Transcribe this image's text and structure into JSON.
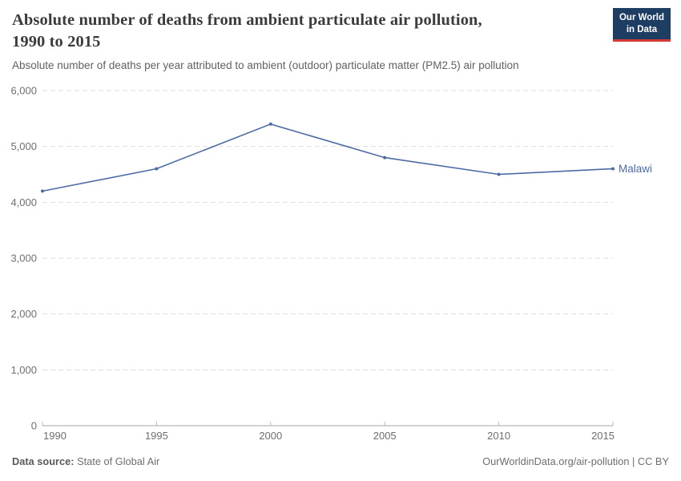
{
  "header": {
    "title_line1": "Absolute number of deaths from ambient particulate air pollution,",
    "title_line2": "1990 to 2015",
    "subtitle": "Absolute number of deaths per year attributed to ambient (outdoor) particulate matter (PM2.5) air pollution",
    "logo": {
      "line1": "Our World",
      "line2": "in Data",
      "bg_color": "#1d3d63",
      "accent_color": "#d73a33"
    }
  },
  "chart_data": {
    "type": "line",
    "title": "Absolute number of deaths from ambient particulate air pollution, 1990 to 2015",
    "x": [
      1990,
      1995,
      2000,
      2005,
      2010,
      2015
    ],
    "xtick_labels": [
      "1990",
      "1995",
      "2000",
      "2005",
      "2010",
      "2015"
    ],
    "series": [
      {
        "name": "Malawi",
        "values": [
          4200,
          4600,
          5400,
          4800,
          4500,
          4600
        ],
        "color": "#4c6ba3"
      }
    ],
    "xlabel": "",
    "ylabel": "",
    "ylim": [
      0,
      6000
    ],
    "ytick_interval": 1000,
    "ytick_labels": [
      "0",
      "1,000",
      "2,000",
      "3,000",
      "4,000",
      "5,000",
      "6,000"
    ],
    "grid": "horizontal dashed",
    "legend_position": "end-of-line label",
    "gridline_color": "#dddddd",
    "axis_color": "#a5a5a5"
  },
  "footer": {
    "source_label": "Data source:",
    "source_value": " State of Global Air",
    "attribution": "OurWorldinData.org/air-pollution | CC BY"
  }
}
